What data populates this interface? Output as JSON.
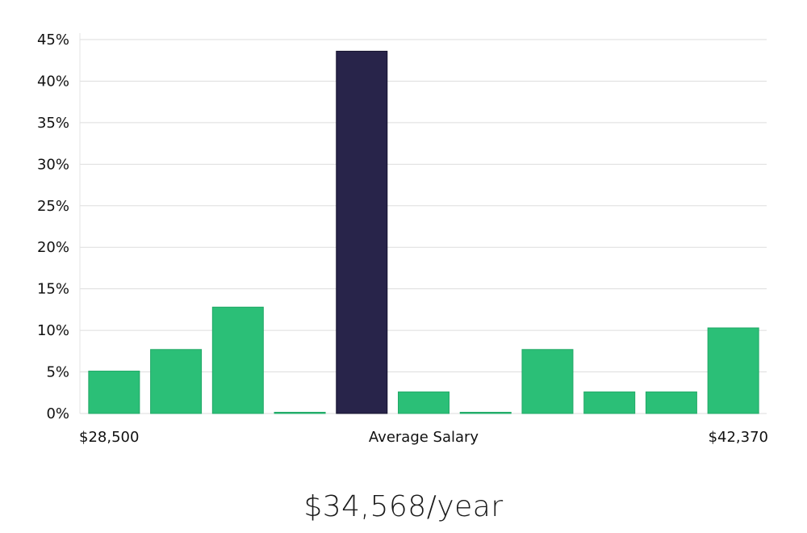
{
  "chart_data": {
    "type": "bar",
    "categories": [
      "1",
      "2",
      "3",
      "4",
      "5",
      "6",
      "7",
      "8",
      "9",
      "10",
      "11"
    ],
    "values": [
      5.1,
      7.7,
      12.8,
      0.0,
      43.6,
      2.6,
      0.0,
      7.7,
      2.6,
      2.6,
      10.3
    ],
    "highlight_index": 4,
    "ylim": [
      0,
      45
    ],
    "yticks": [
      "0%",
      "5%",
      "10%",
      "15%",
      "20%",
      "25%",
      "30%",
      "35%",
      "40%",
      "45%"
    ],
    "x_labels": {
      "left": "$28,500",
      "center": "Average Salary",
      "right": "$42,370"
    },
    "grid": true,
    "colors": {
      "bar": "#2bbf77",
      "highlight": "#28244a",
      "grid": "#dddddd"
    }
  },
  "summary": {
    "salary_text": "$34,568/year"
  }
}
